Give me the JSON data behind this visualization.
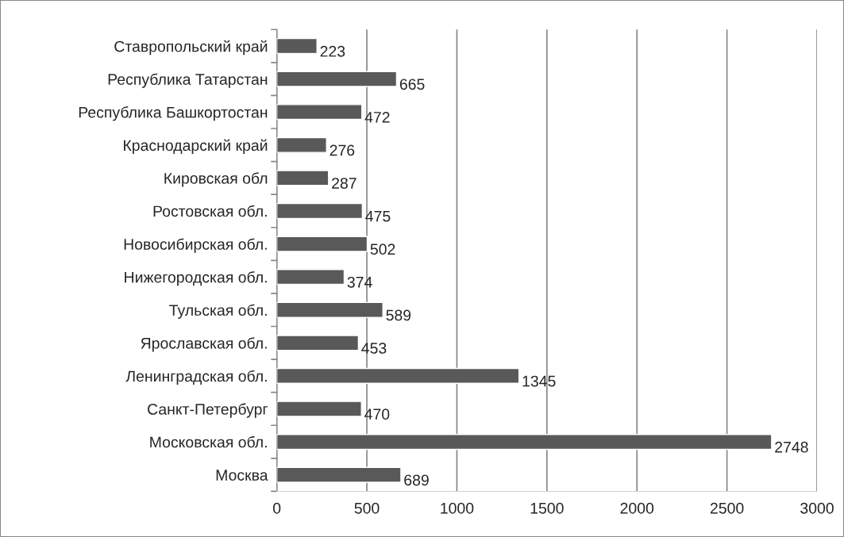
{
  "chart_data": {
    "type": "bar",
    "orientation": "horizontal",
    "categories": [
      "Ставропольский край",
      "Республика Татарстан",
      "Республика Башкортостан",
      "Краснодарский край",
      "Кировская обл",
      "Ростовская обл.",
      "Новосибирская обл.",
      "Нижегородская обл.",
      "Тульская обл.",
      "Ярославская обл.",
      "Ленинградская обл.",
      "Санкт-Петербург",
      "Московская обл.",
      "Москва"
    ],
    "values": [
      223,
      665,
      472,
      276,
      287,
      475,
      502,
      374,
      589,
      453,
      1345,
      470,
      2748,
      689
    ],
    "color": "#595959",
    "data_labels": true,
    "grid": "x",
    "legend": false,
    "xlim": [
      0,
      3000
    ],
    "xticks": [
      0,
      500,
      1000,
      1500,
      2000,
      2500,
      3000
    ]
  }
}
